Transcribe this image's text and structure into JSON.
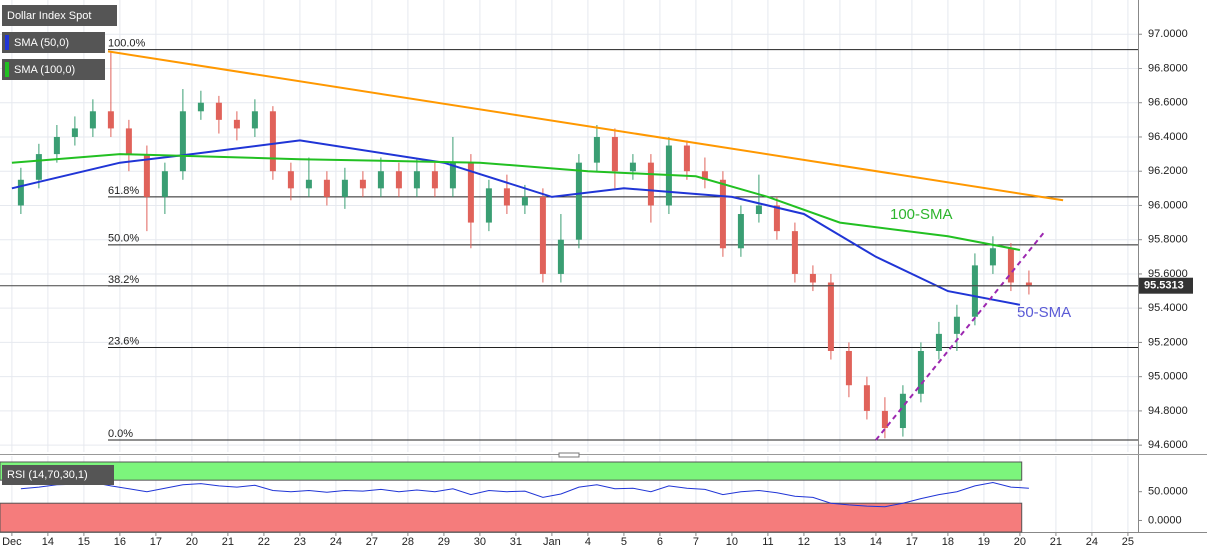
{
  "chart_data": {
    "type": "candlestick",
    "title": "Dollar Index Spot",
    "up_color": "#3a9e73",
    "down_color": "#e0625a",
    "grid": true,
    "xlim": [
      -0.33,
      31.28
    ],
    "xticks": [
      {
        "value": 0,
        "label": "Dec"
      },
      {
        "value": 1,
        "label": "14"
      },
      {
        "value": 2,
        "label": "15"
      },
      {
        "value": 3,
        "label": "16"
      },
      {
        "value": 4,
        "label": "17"
      },
      {
        "value": 5,
        "label": "20"
      },
      {
        "value": 6,
        "label": "21"
      },
      {
        "value": 7,
        "label": "22"
      },
      {
        "value": 8,
        "label": "23"
      },
      {
        "value": 9,
        "label": "24"
      },
      {
        "value": 10,
        "label": "27"
      },
      {
        "value": 11,
        "label": "28"
      },
      {
        "value": 12,
        "label": "29"
      },
      {
        "value": 13,
        "label": "30"
      },
      {
        "value": 14,
        "label": "31"
      },
      {
        "value": 15,
        "label": "Jan"
      },
      {
        "value": 16,
        "label": "4"
      },
      {
        "value": 17,
        "label": "5"
      },
      {
        "value": 18,
        "label": "6"
      },
      {
        "value": 19,
        "label": "7"
      },
      {
        "value": 20,
        "label": "10"
      },
      {
        "value": 21,
        "label": "11"
      },
      {
        "value": 22,
        "label": "12"
      },
      {
        "value": 23,
        "label": "13"
      },
      {
        "value": 24,
        "label": "14"
      },
      {
        "value": 25,
        "label": "17"
      },
      {
        "value": 26,
        "label": "18"
      },
      {
        "value": 27,
        "label": "19"
      },
      {
        "value": 28,
        "label": "20"
      },
      {
        "value": 29,
        "label": "21"
      },
      {
        "value": 30,
        "label": "24"
      },
      {
        "value": 31,
        "label": "25"
      }
    ],
    "ylim": [
      94.56,
      97.2
    ],
    "yticks": [
      {
        "value": 94.6,
        "label": "94.6000"
      },
      {
        "value": 94.8,
        "label": "94.8000"
      },
      {
        "value": 95.0,
        "label": "95.0000"
      },
      {
        "value": 95.2,
        "label": "95.2000"
      },
      {
        "value": 95.4,
        "label": "95.4000"
      },
      {
        "value": 95.6,
        "label": "95.6000"
      },
      {
        "value": 95.8,
        "label": "95.8000"
      },
      {
        "value": 96.0,
        "label": "96.0000"
      },
      {
        "value": 96.2,
        "label": "96.2000"
      },
      {
        "value": 96.4,
        "label": "96.4000"
      },
      {
        "value": 96.6,
        "label": "96.6000"
      },
      {
        "value": 96.8,
        "label": "96.8000"
      },
      {
        "value": 97.0,
        "label": "97.0000"
      }
    ],
    "last_price": 95.5313,
    "candles": {
      "x": [
        0.25,
        0.75,
        1.25,
        1.75,
        2.25,
        2.75,
        3.25,
        3.75,
        4.25,
        4.75,
        5.25,
        5.75,
        6.25,
        6.75,
        7.25,
        7.75,
        8.25,
        8.75,
        9.25,
        9.75,
        10.25,
        10.75,
        11.25,
        11.75,
        12.25,
        12.75,
        13.25,
        13.75,
        14.25,
        14.75,
        15.25,
        15.75,
        16.25,
        16.75,
        17.25,
        17.75,
        18.25,
        18.75,
        19.25,
        19.75,
        20.25,
        20.75,
        21.25,
        21.75,
        22.25,
        22.75,
        23.25,
        23.75,
        24.25,
        24.75,
        25.25,
        25.75,
        26.25,
        26.75,
        27.25,
        27.75,
        28.25
      ],
      "open": [
        96.0,
        96.15,
        96.3,
        96.4,
        96.45,
        96.55,
        96.45,
        96.3,
        96.05,
        96.2,
        96.55,
        96.6,
        96.5,
        96.45,
        96.55,
        96.2,
        96.1,
        96.15,
        96.05,
        96.15,
        96.1,
        96.2,
        96.1,
        96.2,
        96.1,
        96.25,
        95.9,
        96.1,
        96.0,
        96.05,
        95.6,
        95.8,
        96.25,
        96.4,
        96.2,
        96.25,
        96.0,
        96.35,
        96.2,
        96.15,
        95.75,
        95.95,
        96.0,
        95.85,
        95.6,
        95.55,
        95.15,
        94.95,
        94.8,
        94.7,
        94.9,
        95.15,
        95.25,
        95.35,
        95.65,
        95.75,
        95.55
      ],
      "high": [
        96.22,
        96.36,
        96.47,
        96.52,
        96.62,
        96.9,
        96.5,
        96.35,
        96.25,
        96.68,
        96.67,
        96.64,
        96.55,
        96.62,
        96.58,
        96.25,
        96.28,
        96.2,
        96.22,
        96.2,
        96.28,
        96.25,
        96.27,
        96.25,
        96.4,
        96.3,
        96.15,
        96.18,
        96.12,
        96.1,
        95.95,
        96.3,
        96.47,
        96.45,
        96.3,
        96.3,
        96.4,
        96.38,
        96.28,
        96.2,
        96.0,
        96.18,
        96.05,
        95.9,
        95.65,
        95.6,
        95.2,
        95.0,
        94.88,
        94.95,
        95.2,
        95.32,
        95.42,
        95.72,
        95.82,
        95.78,
        95.62
      ],
      "low": [
        95.95,
        96.1,
        96.25,
        96.35,
        96.4,
        96.4,
        96.2,
        95.85,
        95.95,
        96.15,
        96.5,
        96.42,
        96.38,
        96.4,
        96.15,
        96.03,
        96.05,
        96.0,
        95.98,
        96.05,
        96.05,
        96.05,
        96.05,
        96.05,
        96.05,
        95.75,
        95.85,
        95.95,
        95.95,
        95.55,
        95.55,
        95.75,
        96.2,
        96.1,
        96.15,
        95.9,
        95.95,
        96.15,
        96.1,
        95.7,
        95.7,
        95.9,
        95.8,
        95.55,
        95.5,
        95.1,
        94.88,
        94.75,
        94.64,
        94.65,
        94.85,
        95.1,
        95.15,
        95.3,
        95.6,
        95.5,
        95.48
      ],
      "close": [
        96.15,
        96.3,
        96.4,
        96.45,
        96.55,
        96.45,
        96.3,
        96.05,
        96.2,
        96.55,
        96.6,
        96.5,
        96.45,
        96.55,
        96.2,
        96.1,
        96.15,
        96.05,
        96.15,
        96.1,
        96.2,
        96.1,
        96.2,
        96.1,
        96.25,
        95.9,
        96.1,
        96.0,
        96.05,
        95.6,
        95.8,
        96.25,
        96.4,
        96.2,
        96.25,
        96.0,
        96.35,
        96.2,
        96.15,
        95.75,
        95.95,
        96.0,
        95.85,
        95.6,
        95.55,
        95.15,
        94.95,
        94.8,
        94.7,
        94.9,
        95.15,
        95.25,
        95.35,
        95.65,
        95.75,
        95.55,
        95.5313
      ]
    },
    "series": [
      {
        "name": "SMA (50,0)",
        "color": "#2035d6",
        "x": [
          0,
          3,
          5,
          8,
          12,
          15,
          17,
          20,
          22,
          24,
          26,
          28
        ],
        "values": [
          96.1,
          96.25,
          96.3,
          96.38,
          96.25,
          96.05,
          96.1,
          96.05,
          95.95,
          95.7,
          95.5,
          95.42
        ]
      },
      {
        "name": "SMA (100,0)",
        "color": "#22c022",
        "x": [
          0,
          3,
          8,
          13,
          16,
          19,
          21,
          23,
          26,
          28
        ],
        "values": [
          96.25,
          96.3,
          96.27,
          96.25,
          96.2,
          96.17,
          96.05,
          95.9,
          95.82,
          95.74
        ]
      }
    ],
    "fib": [
      {
        "label": "100.0%",
        "value": 96.91
      },
      {
        "label": "61.8%",
        "value": 96.05
      },
      {
        "label": "50.0%",
        "value": 95.77
      },
      {
        "label": "38.2%",
        "value": 95.53
      },
      {
        "label": "23.6%",
        "value": 95.17
      },
      {
        "label": "0.0%",
        "value": 94.63
      }
    ],
    "fib_start": 2.67,
    "trendlines": [
      {
        "color": "#ff9800",
        "dash": false,
        "x": [
          2.67,
          29.2
        ],
        "values": [
          96.9,
          96.03
        ]
      },
      {
        "color": "#9c27b0",
        "dash": true,
        "x": [
          24.0,
          28.7
        ],
        "values": [
          94.63,
          95.85
        ]
      }
    ],
    "annotations": [
      {
        "text": "100-SMA",
        "color": "#2db52d"
      },
      {
        "text": "50-SMA",
        "color": "#5b5bd6"
      }
    ],
    "rsi": {
      "name": "RSI (14,70,30,1)",
      "color": "#2035d6",
      "ylim": [
        -20,
        105
      ],
      "yticks": [
        {
          "value": 50,
          "label": "50.0000"
        },
        {
          "value": 0,
          "label": "0.0000"
        }
      ],
      "upper": 70,
      "lower": 30,
      "band_end": 28.05,
      "upper_color": "#7cf57c",
      "lower_color": "#f57c7c",
      "values": [
        55,
        58,
        62,
        63,
        66,
        60,
        55,
        50,
        56,
        62,
        64,
        60,
        58,
        61,
        52,
        50,
        52,
        49,
        52,
        51,
        54,
        50,
        53,
        50,
        55,
        45,
        52,
        50,
        51,
        40,
        46,
        58,
        62,
        55,
        56,
        50,
        60,
        56,
        54,
        45,
        50,
        52,
        48,
        42,
        40,
        30,
        27,
        25,
        24,
        30,
        38,
        45,
        50,
        60,
        66,
        58,
        56
      ]
    }
  }
}
